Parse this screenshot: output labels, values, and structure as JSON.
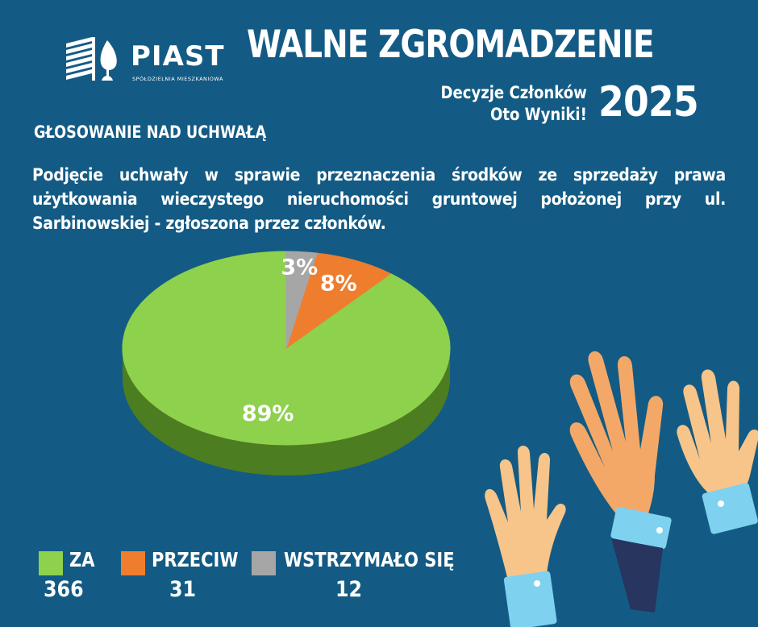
{
  "logo": {
    "name": "PIAST",
    "subtitle": "SPÓŁDZIELNIA MIESZKANIOWA"
  },
  "header": {
    "title": "WALNE ZGROMADZENIE",
    "subtitle_line1": "Decyzje Członków",
    "subtitle_line2": "Oto Wyniki!",
    "year": "2025"
  },
  "section_title": "GŁOSOWANIE NAD UCHWAŁĄ",
  "question": "Podjęcie uchwały w sprawie przeznaczenia środków ze sprzedaży prawa użytkowania wieczystego nieruchomości gruntowej położonej przy ul. Sarbinowskiej - zgłoszona przez członków.",
  "chart_data": {
    "type": "pie",
    "title": "",
    "slices": [
      {
        "label": "ZA",
        "count": "366",
        "value": 89,
        "display": "89%",
        "color": "#8ed14c",
        "side_color": "#4d7d21"
      },
      {
        "label": "PRZECIW",
        "count": "31",
        "value": 8,
        "display": "8%",
        "color": "#ef7d2e",
        "side_color": "#a04d15"
      },
      {
        "label": "WSTRZYMAŁO SIĘ",
        "count": "12",
        "value": 3,
        "display": "3%",
        "color": "#a6a6a6",
        "side_color": "#6a6a6a"
      }
    ],
    "legend_position": "bottom-left"
  },
  "colors": {
    "background": "#135b84",
    "text": "#ffffff"
  }
}
